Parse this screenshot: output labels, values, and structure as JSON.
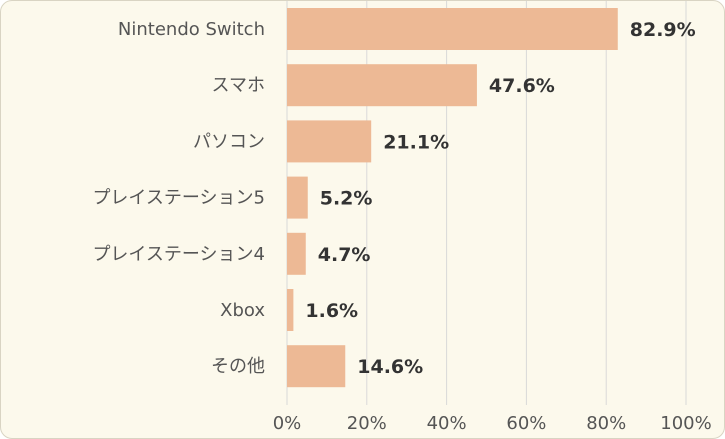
{
  "chart_data": {
    "type": "bar",
    "orientation": "horizontal",
    "categories": [
      "Nintendo Switch",
      "スマホ",
      "パソコン",
      "プレイステーション5",
      "プレイステーション4",
      "Xbox",
      "その他"
    ],
    "values": [
      82.9,
      47.6,
      21.1,
      5.2,
      4.7,
      1.6,
      14.6
    ],
    "value_labels": [
      "82.9%",
      "47.6%",
      "21.1%",
      "5.2%",
      "4.7%",
      "1.6%",
      "14.6%"
    ],
    "xlim": [
      0,
      100
    ],
    "x_ticks": [
      0,
      20,
      40,
      60,
      80,
      100
    ],
    "x_tick_labels": [
      "0%",
      "20%",
      "40%",
      "60%",
      "80%",
      "100%"
    ],
    "grid": true,
    "legend": "none",
    "bar_color": "#edb995",
    "background_color": "#fcf9ec",
    "grid_color": "#d9d9d9"
  }
}
